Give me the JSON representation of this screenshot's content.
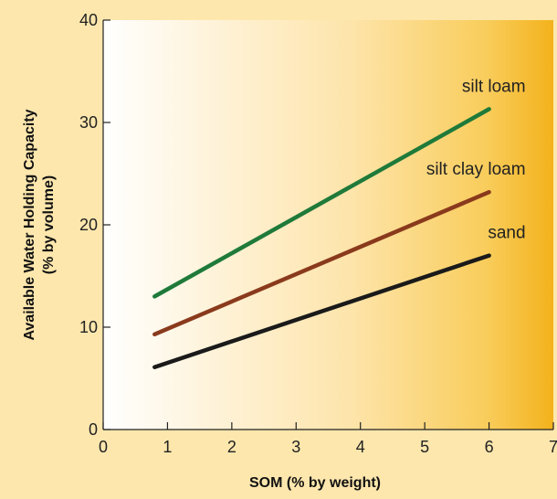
{
  "chart_data": {
    "type": "line",
    "title": "",
    "xlabel": "SOM (% by weight)",
    "ylabel": "Available Water Holding Capacity",
    "ylabel_sub": "(% by volume)",
    "xlim": [
      0,
      7
    ],
    "ylim": [
      0,
      40
    ],
    "x_ticks": [
      0,
      1,
      2,
      3,
      4,
      5,
      6,
      7
    ],
    "y_ticks": [
      0,
      10,
      20,
      30,
      40
    ],
    "grid": false,
    "legend": "inline labels at line ends",
    "series": [
      {
        "name": "silt loam",
        "x": [
          0.8,
          6
        ],
        "y": [
          13.0,
          31.3
        ],
        "color": "#1f7a3a"
      },
      {
        "name": "silt clay loam",
        "x": [
          0.8,
          6
        ],
        "y": [
          9.3,
          23.2
        ],
        "color": "#8a3a1c"
      },
      {
        "name": "sand",
        "x": [
          0.8,
          6
        ],
        "y": [
          6.1,
          17.0
        ],
        "color": "#1a1a1a"
      }
    ]
  },
  "colors": {
    "page_background": "#fde7ad",
    "plot_gradient_start": "#ffffff",
    "plot_gradient_end": "#f3b21c"
  }
}
